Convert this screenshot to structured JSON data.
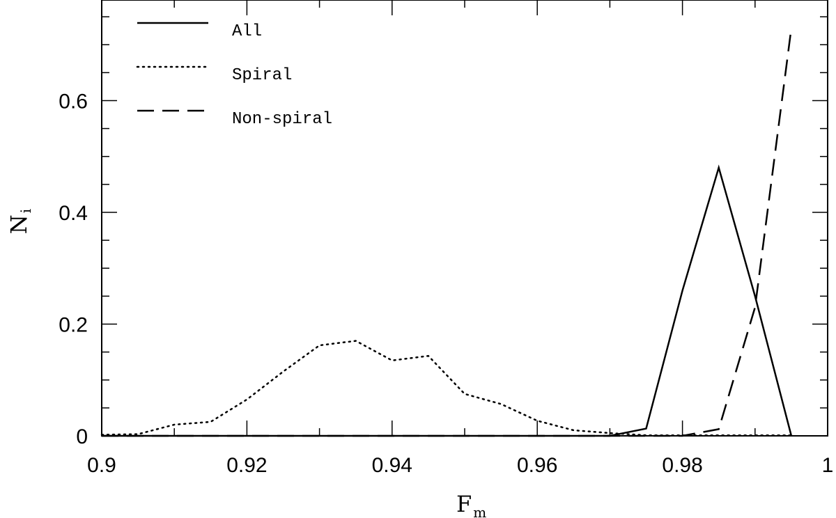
{
  "chart_data": {
    "type": "line",
    "xlabel": "F",
    "xlabel_sub": "m",
    "ylabel": "N",
    "ylabel_sub": "i",
    "xlim": [
      0.9,
      1.0
    ],
    "ylim": [
      0,
      0.78
    ],
    "xticks": [
      "0.9",
      "0.92",
      "0.94",
      "0.96",
      "0.98",
      "1"
    ],
    "yticks": [
      "0",
      "0.2",
      "0.4",
      "0.6"
    ],
    "grid": false,
    "legend_position": "top-left",
    "series": [
      {
        "name": "All",
        "style": "solid",
        "x": [
          0.9,
          0.905,
          0.91,
          0.915,
          0.92,
          0.925,
          0.93,
          0.935,
          0.94,
          0.945,
          0.95,
          0.955,
          0.96,
          0.965,
          0.97,
          0.975,
          0.98,
          0.985,
          0.99,
          0.995
        ],
        "y": [
          0,
          0,
          0,
          0,
          0,
          0,
          0,
          0,
          0,
          0,
          0,
          0,
          0,
          0,
          0,
          0.013,
          0.26,
          0.48,
          0.25,
          0
        ]
      },
      {
        "name": "Spiral",
        "style": "dotted",
        "x": [
          0.9,
          0.905,
          0.91,
          0.915,
          0.92,
          0.925,
          0.93,
          0.935,
          0.94,
          0.945,
          0.95,
          0.955,
          0.96,
          0.965,
          0.97,
          0.975,
          0.98,
          0.985,
          0.99,
          0.995
        ],
        "y": [
          0.002,
          0.003,
          0.02,
          0.025,
          0.065,
          0.115,
          0.162,
          0.17,
          0.135,
          0.143,
          0.075,
          0.057,
          0.027,
          0.01,
          0.005,
          0.001,
          0.001,
          0.001,
          0.001,
          0.001
        ]
      },
      {
        "name": "Non-spiral",
        "style": "dashed",
        "x": [
          0.9,
          0.905,
          0.91,
          0.915,
          0.92,
          0.925,
          0.93,
          0.935,
          0.94,
          0.945,
          0.95,
          0.955,
          0.96,
          0.965,
          0.97,
          0.975,
          0.98,
          0.985,
          0.99,
          0.995
        ],
        "y": [
          0,
          0,
          0,
          0,
          0,
          0,
          0,
          0,
          0,
          0,
          0,
          0,
          0,
          0,
          0,
          0,
          0,
          0.012,
          0.23,
          0.73
        ]
      }
    ]
  }
}
